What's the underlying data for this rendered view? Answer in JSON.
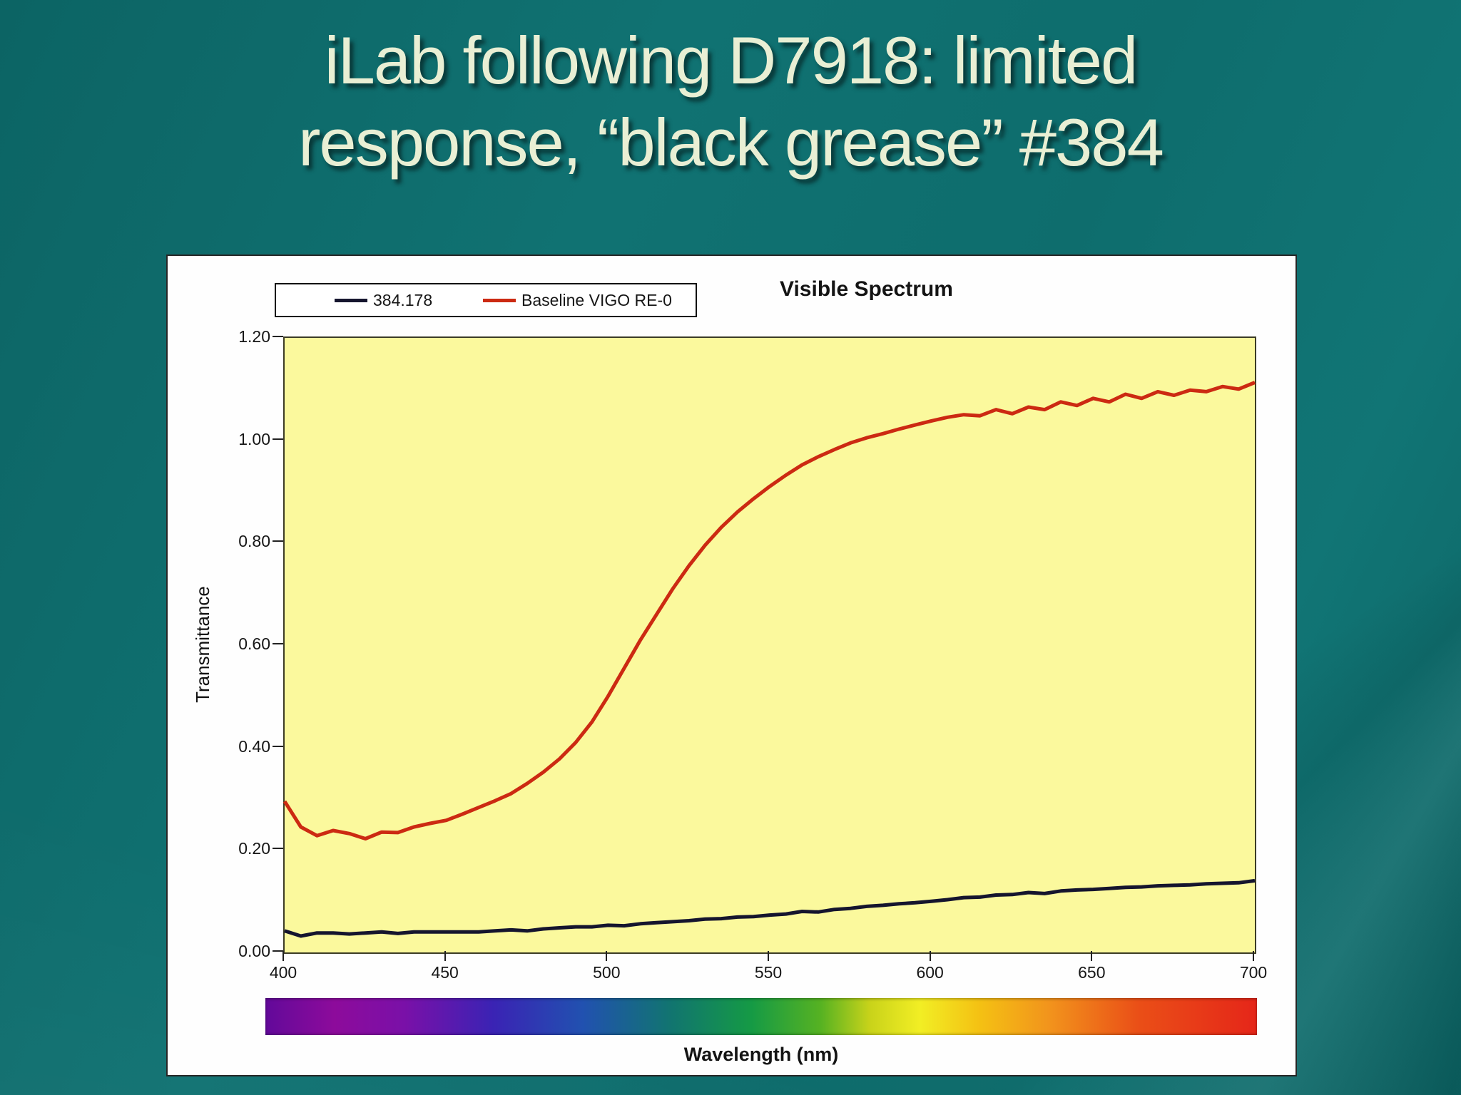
{
  "slide": {
    "title_line1": "iLab following D7918: limited",
    "title_line2": "response, “black grease” #384"
  },
  "colors": {
    "slide_bg": "#0d6b6b",
    "title_text": "#e9efd4",
    "panel_bg": "#fefefe",
    "panel_border": "#262626",
    "plot_bg": "#fbf99d",
    "plot_border": "#3c3c26",
    "axis_text": "#161616",
    "tick_mark": "#222222"
  },
  "chart": {
    "title": "Visible Spectrum",
    "xlabel": "Wavelength (nm)",
    "ylabel": "Transmittance"
  },
  "chart_data": {
    "type": "line",
    "title": "Visible Spectrum",
    "xlabel": "Wavelength (nm)",
    "ylabel": "Transmittance",
    "xlim": [
      400,
      700
    ],
    "ylim": [
      0,
      1.2
    ],
    "x_ticks": [
      400,
      450,
      500,
      550,
      600,
      650,
      700
    ],
    "y_ticks": [
      "1.20",
      "1.00",
      "0.80",
      "0.60",
      "0.40",
      "0.20",
      "0.00"
    ],
    "grid": false,
    "legend_position": "top-left",
    "plot_background": "#fbf99d",
    "x": [
      400,
      405,
      410,
      415,
      420,
      425,
      430,
      435,
      440,
      445,
      450,
      455,
      460,
      465,
      470,
      475,
      480,
      485,
      490,
      495,
      500,
      505,
      510,
      515,
      520,
      525,
      530,
      535,
      540,
      545,
      550,
      555,
      560,
      565,
      570,
      575,
      580,
      585,
      590,
      595,
      600,
      605,
      610,
      615,
      620,
      625,
      630,
      635,
      640,
      645,
      650,
      655,
      660,
      665,
      670,
      675,
      680,
      685,
      690,
      695,
      700
    ],
    "series": [
      {
        "name": "384.178",
        "color": "#15152e",
        "y": [
          0.042,
          0.032,
          0.038,
          0.038,
          0.036,
          0.038,
          0.04,
          0.037,
          0.04,
          0.04,
          0.04,
          0.04,
          0.04,
          0.042,
          0.044,
          0.042,
          0.046,
          0.048,
          0.05,
          0.05,
          0.053,
          0.052,
          0.056,
          0.058,
          0.06,
          0.062,
          0.065,
          0.066,
          0.069,
          0.07,
          0.073,
          0.075,
          0.08,
          0.079,
          0.084,
          0.086,
          0.09,
          0.092,
          0.095,
          0.097,
          0.1,
          0.103,
          0.107,
          0.108,
          0.112,
          0.113,
          0.117,
          0.115,
          0.12,
          0.122,
          0.123,
          0.125,
          0.127,
          0.128,
          0.13,
          0.131,
          0.132,
          0.134,
          0.135,
          0.136,
          0.14
        ]
      },
      {
        "name": "Baseline VIGO RE-0",
        "color": "#cc2a12",
        "y": [
          0.295,
          0.245,
          0.228,
          0.238,
          0.232,
          0.222,
          0.235,
          0.234,
          0.245,
          0.252,
          0.258,
          0.27,
          0.283,
          0.296,
          0.31,
          0.33,
          0.352,
          0.378,
          0.41,
          0.45,
          0.5,
          0.555,
          0.61,
          0.66,
          0.71,
          0.755,
          0.795,
          0.83,
          0.86,
          0.886,
          0.91,
          0.932,
          0.952,
          0.968,
          0.982,
          0.995,
          1.005,
          1.013,
          1.022,
          1.03,
          1.038,
          1.045,
          1.05,
          1.048,
          1.06,
          1.052,
          1.065,
          1.06,
          1.075,
          1.068,
          1.082,
          1.075,
          1.09,
          1.082,
          1.095,
          1.088,
          1.098,
          1.095,
          1.105,
          1.1,
          1.113
        ]
      }
    ],
    "spectrum_bar_stops": [
      {
        "c": "#62099a",
        "p": 0
      },
      {
        "c": "#8d0b9b",
        "p": 7
      },
      {
        "c": "#7a10a8",
        "p": 14
      },
      {
        "c": "#3a23b4",
        "p": 23
      },
      {
        "c": "#2151b0",
        "p": 32
      },
      {
        "c": "#11756f",
        "p": 41
      },
      {
        "c": "#159a45",
        "p": 49
      },
      {
        "c": "#56b222",
        "p": 56
      },
      {
        "c": "#c9d31a",
        "p": 61
      },
      {
        "c": "#f2ee24",
        "p": 66
      },
      {
        "c": "#f4c113",
        "p": 72
      },
      {
        "c": "#f2941c",
        "p": 79
      },
      {
        "c": "#ea4f17",
        "p": 88
      },
      {
        "c": "#e52619",
        "p": 100
      }
    ]
  }
}
